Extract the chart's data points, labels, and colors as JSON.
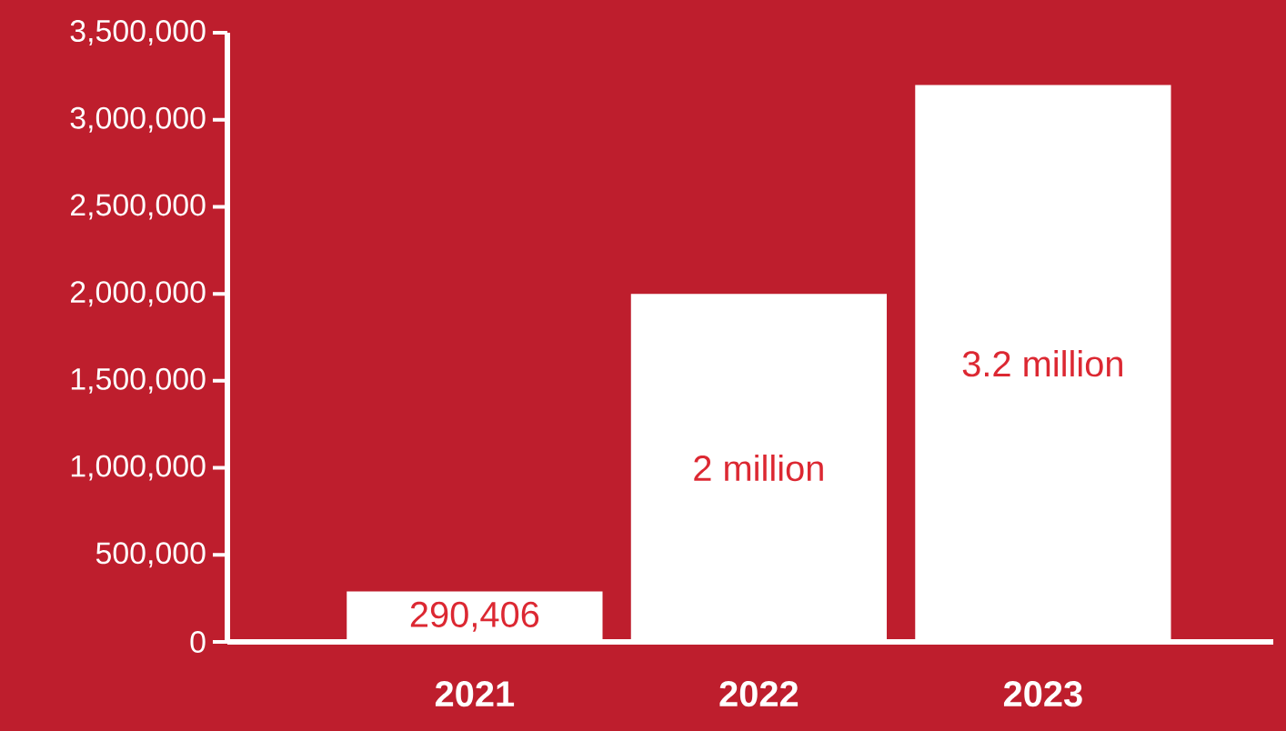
{
  "chart_data": {
    "type": "bar",
    "categories": [
      "2021",
      "2022",
      "2023"
    ],
    "values": [
      290406,
      2000000,
      3200000
    ],
    "value_labels": [
      "290,406",
      "2 million",
      "3.2 million"
    ],
    "color": "#ffffff",
    "ylim": [
      0,
      3500000
    ],
    "yticks": [
      {
        "value": 0,
        "label": "0"
      },
      {
        "value": 500000,
        "label": "500,000"
      },
      {
        "value": 1000000,
        "label": "1,000,000"
      },
      {
        "value": 1500000,
        "label": "1,500,000"
      },
      {
        "value": 2000000,
        "label": "2,000,000"
      },
      {
        "value": 2500000,
        "label": "2,500,000"
      },
      {
        "value": 3000000,
        "label": "3,000,000"
      },
      {
        "value": 3500000,
        "label": "3,500,000"
      }
    ]
  }
}
